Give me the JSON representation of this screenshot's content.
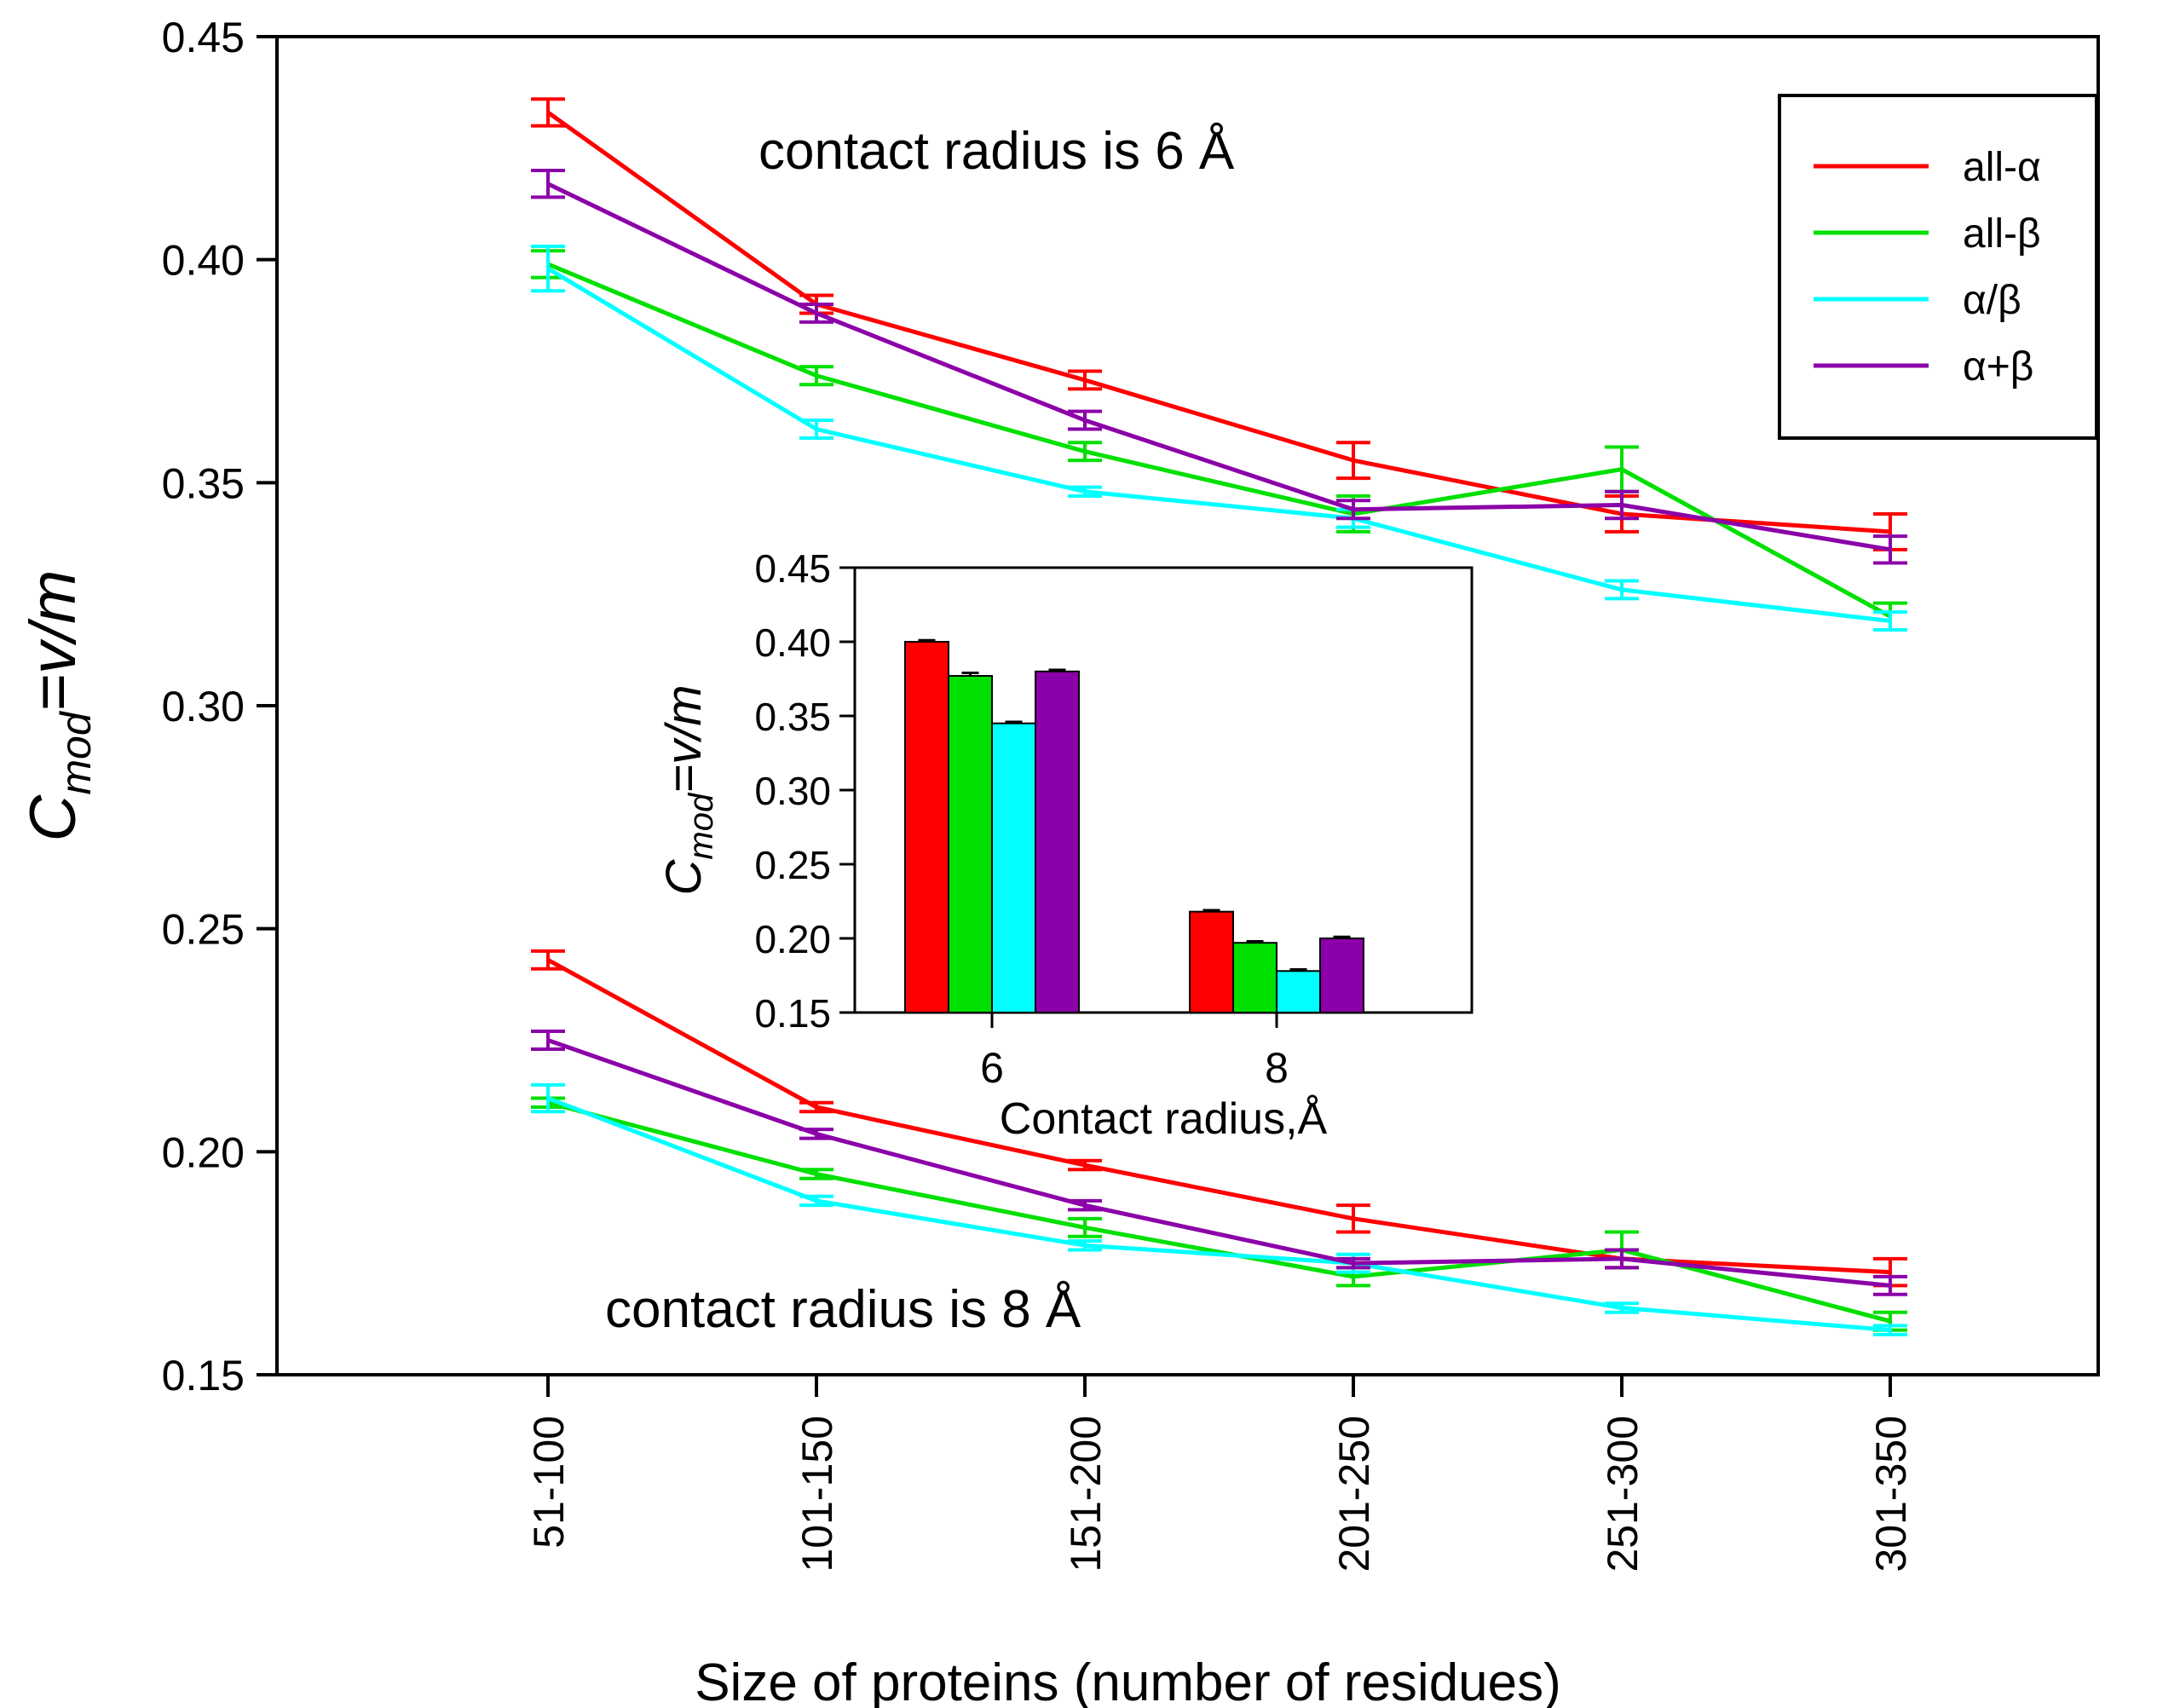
{
  "chart_data": [
    {
      "type": "line",
      "title": "",
      "xlabel": "Size of proteins (number of residues)",
      "ylabel": {
        "base": "C",
        "sub": "mod",
        "rest": "=v/m"
      },
      "categories": [
        "51-100",
        "101-150",
        "151-200",
        "201-250",
        "251-300",
        "301-350"
      ],
      "ylim": [
        0.15,
        0.45
      ],
      "yticks": [
        "0.15",
        "0.20",
        "0.25",
        "0.30",
        "0.35",
        "0.40",
        "0.45"
      ],
      "yticks_values": [
        0.15,
        0.2,
        0.25,
        0.3,
        0.35,
        0.4,
        0.45
      ],
      "annotations": {
        "r6": "contact radius is 6 Å",
        "r8": "contact radius is 8 Å"
      },
      "legend": {
        "position": "top-right",
        "entries": [
          {
            "name": "all-α",
            "color": "#ff0000"
          },
          {
            "name": "all-β",
            "color": "#00e000"
          },
          {
            "name": "α/β",
            "color": "#00ffff"
          },
          {
            "name": "α+β",
            "color": "#8b00a8"
          }
        ]
      },
      "series": [
        {
          "name": "all-α",
          "color": "#ff0000",
          "group": "6 Å",
          "values": [
            0.433,
            0.39,
            0.373,
            0.355,
            0.343,
            0.339
          ],
          "errors": [
            0.003,
            0.002,
            0.002,
            0.004,
            0.004,
            0.004
          ]
        },
        {
          "name": "all-β",
          "color": "#00e000",
          "group": "6 Å",
          "values": [
            0.399,
            0.374,
            0.357,
            0.343,
            0.353,
            0.32
          ],
          "errors": [
            0.003,
            0.002,
            0.002,
            0.004,
            0.005,
            0.003
          ]
        },
        {
          "name": "α/β",
          "color": "#00ffff",
          "group": "6 Å",
          "values": [
            0.398,
            0.362,
            0.348,
            0.342,
            0.326,
            0.319
          ],
          "errors": [
            0.005,
            0.002,
            0.001,
            0.002,
            0.002,
            0.002
          ]
        },
        {
          "name": "α+β",
          "color": "#8b00a8",
          "group": "6 Å",
          "values": [
            0.417,
            0.388,
            0.364,
            0.344,
            0.345,
            0.335
          ],
          "errors": [
            0.003,
            0.002,
            0.002,
            0.002,
            0.003,
            0.003
          ]
        },
        {
          "name": "all-α",
          "color": "#ff0000",
          "group": "8 Å",
          "values": [
            0.243,
            0.21,
            0.197,
            0.185,
            0.176,
            0.173
          ],
          "errors": [
            0.002,
            0.001,
            0.001,
            0.003,
            0.002,
            0.003
          ]
        },
        {
          "name": "all-β",
          "color": "#00e000",
          "group": "8 Å",
          "values": [
            0.211,
            0.195,
            0.183,
            0.172,
            0.178,
            0.162
          ],
          "errors": [
            0.001,
            0.001,
            0.002,
            0.002,
            0.004,
            0.002
          ]
        },
        {
          "name": "α/β",
          "color": "#00ffff",
          "group": "8 Å",
          "values": [
            0.212,
            0.189,
            0.179,
            0.175,
            0.165,
            0.16
          ],
          "errors": [
            0.003,
            0.001,
            0.001,
            0.002,
            0.001,
            0.001
          ]
        },
        {
          "name": "α+β",
          "color": "#8b00a8",
          "group": "8 Å",
          "values": [
            0.225,
            0.204,
            0.188,
            0.175,
            0.176,
            0.17
          ],
          "errors": [
            0.002,
            0.001,
            0.001,
            0.001,
            0.002,
            0.002
          ]
        }
      ]
    },
    {
      "type": "bar",
      "title": "",
      "xlabel": "Contact radius,Å",
      "ylabel": {
        "base": "C",
        "sub": "mod",
        "rest": "=v/m"
      },
      "categories": [
        "6",
        "8"
      ],
      "ylim": [
        0.15,
        0.45
      ],
      "yticks": [
        "0.15",
        "0.20",
        "0.25",
        "0.30",
        "0.35",
        "0.40",
        "0.45"
      ],
      "yticks_values": [
        0.15,
        0.2,
        0.25,
        0.3,
        0.35,
        0.4,
        0.45
      ],
      "series": [
        {
          "name": "all-α",
          "color": "#ff0000",
          "values": [
            0.4,
            0.218
          ],
          "errors": [
            0.001,
            0.001
          ]
        },
        {
          "name": "all-β",
          "color": "#00e000",
          "values": [
            0.377,
            0.197
          ],
          "errors": [
            0.002,
            0.001
          ]
        },
        {
          "name": "α/β",
          "color": "#00ffff",
          "values": [
            0.345,
            0.178
          ],
          "errors": [
            0.001,
            0.001
          ]
        },
        {
          "name": "α+β",
          "color": "#8b00a8",
          "values": [
            0.38,
            0.2
          ],
          "errors": [
            0.001,
            0.001
          ]
        }
      ]
    }
  ]
}
